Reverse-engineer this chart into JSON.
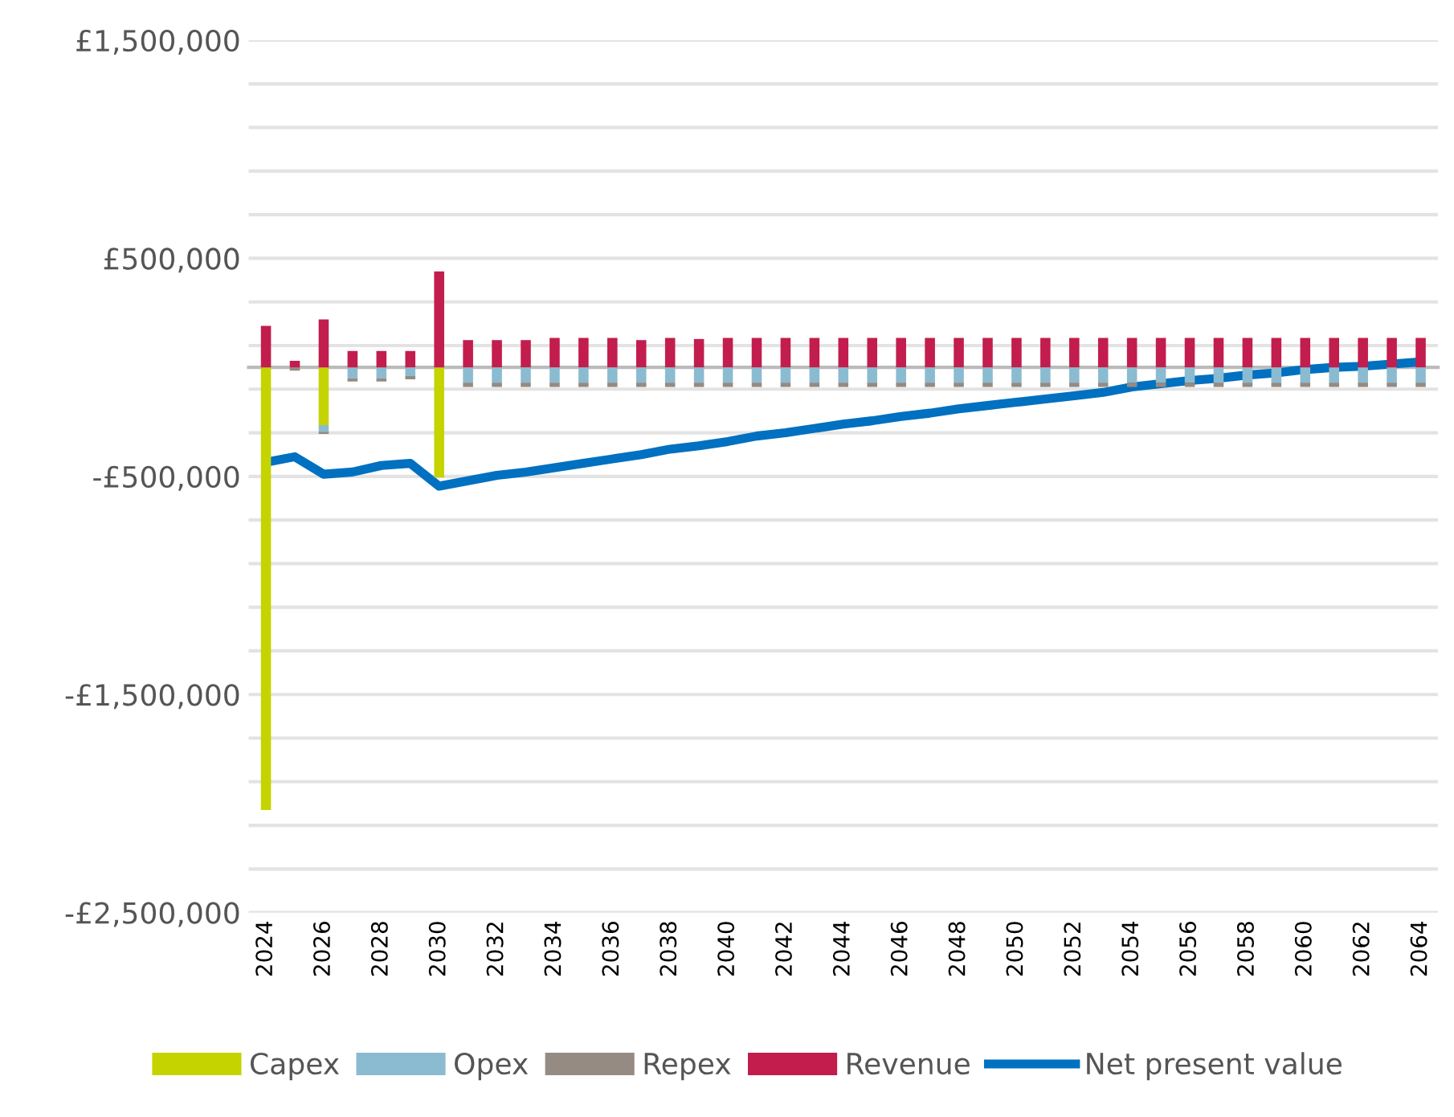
{
  "chart_data": {
    "type": "bar",
    "stacked": true,
    "categories": [
      "2024",
      null,
      "2026",
      null,
      "2028",
      null,
      "2030",
      null,
      "2032",
      null,
      "2034",
      null,
      "2036",
      null,
      "2038",
      null,
      "2040",
      null,
      "2042",
      null,
      "2044",
      null,
      "2046",
      null,
      "2048",
      null,
      "2050",
      null,
      "2052",
      null,
      "2054",
      null,
      "2056",
      null,
      "2058",
      null,
      "2060",
      null,
      "2062",
      null,
      "2064"
    ],
    "series": [
      {
        "name": "Capex",
        "color": "#c5d400",
        "values": [
          -2030000,
          0,
          -265000,
          0,
          0,
          0,
          -505000,
          0,
          0,
          0,
          0,
          0,
          0,
          0,
          0,
          0,
          0,
          0,
          0,
          0,
          0,
          0,
          0,
          0,
          0,
          0,
          0,
          0,
          0,
          0,
          0,
          0,
          0,
          0,
          0,
          0,
          0,
          0,
          0,
          0,
          0
        ]
      },
      {
        "name": "Opex",
        "color": "#8bbbd0",
        "values": [
          0,
          0,
          -30000,
          -50000,
          -50000,
          -40000,
          0,
          -70000,
          -70000,
          -70000,
          -70000,
          -70000,
          -70000,
          -70000,
          -70000,
          -70000,
          -70000,
          -70000,
          -70000,
          -70000,
          -70000,
          -70000,
          -70000,
          -70000,
          -70000,
          -70000,
          -70000,
          -70000,
          -70000,
          -70000,
          -70000,
          -70000,
          -70000,
          -70000,
          -70000,
          -70000,
          -70000,
          -70000,
          -70000,
          -70000,
          -70000
        ]
      },
      {
        "name": "Repex",
        "color": "#958b83",
        "values": [
          0,
          -15000,
          -10000,
          -15000,
          -15000,
          -15000,
          0,
          -20000,
          -20000,
          -20000,
          -20000,
          -20000,
          -20000,
          -20000,
          -20000,
          -20000,
          -20000,
          -20000,
          -20000,
          -20000,
          -20000,
          -20000,
          -20000,
          -20000,
          -20000,
          -20000,
          -20000,
          -20000,
          -20000,
          -20000,
          -20000,
          -20000,
          -20000,
          -20000,
          -20000,
          -20000,
          -20000,
          -20000,
          -20000,
          -20000,
          -20000
        ]
      },
      {
        "name": "Revenue",
        "color": "#c21d4d",
        "values": [
          190000,
          30000,
          220000,
          75000,
          75000,
          75000,
          440000,
          125000,
          125000,
          125000,
          135000,
          135000,
          135000,
          125000,
          135000,
          130000,
          135000,
          135000,
          135000,
          135000,
          135000,
          135000,
          135000,
          135000,
          135000,
          135000,
          135000,
          135000,
          135000,
          135000,
          135000,
          135000,
          135000,
          135000,
          135000,
          135000,
          135000,
          135000,
          135000,
          135000,
          135000
        ]
      },
      {
        "name": "Net present value",
        "color": "#0070c0",
        "type": "line",
        "values": [
          -435000,
          -410000,
          -490000,
          -480000,
          -450000,
          -440000,
          -545000,
          -520000,
          -495000,
          -480000,
          -460000,
          -440000,
          -420000,
          -400000,
          -375000,
          -360000,
          -340000,
          -315000,
          -300000,
          -280000,
          -260000,
          -245000,
          -225000,
          -210000,
          -190000,
          -175000,
          -160000,
          -145000,
          -130000,
          -115000,
          -90000,
          -75000,
          -60000,
          -50000,
          -35000,
          -25000,
          -10000,
          0,
          5000,
          15000,
          25000
        ]
      }
    ],
    "ylim": [
      -2500000,
      1500000
    ],
    "yticks": [
      {
        "value": -2500000,
        "label": "-£2,500,000"
      },
      {
        "value": -2300000,
        "label": null
      },
      {
        "value": -2100000,
        "label": null
      },
      {
        "value": -1900000,
        "label": null
      },
      {
        "value": -1700000,
        "label": null
      },
      {
        "value": -1500000,
        "label": "-£1,500,000"
      },
      {
        "value": -1300000,
        "label": null
      },
      {
        "value": -1100000,
        "label": null
      },
      {
        "value": -900000,
        "label": null
      },
      {
        "value": -700000,
        "label": null
      },
      {
        "value": -500000,
        "label": "-£500,000"
      },
      {
        "value": -300000,
        "label": null
      },
      {
        "value": -100000,
        "label": null
      },
      {
        "value": 100000,
        "label": null
      },
      {
        "value": 300000,
        "label": null
      },
      {
        "value": 500000,
        "label": "£500,000"
      },
      {
        "value": 700000,
        "label": null
      },
      {
        "value": 900000,
        "label": null
      },
      {
        "value": 1100000,
        "label": null
      },
      {
        "value": 1300000,
        "label": null
      },
      {
        "value": 1500000,
        "label": "£1,500,000"
      }
    ],
    "grid": "y",
    "legend": "bottom"
  }
}
